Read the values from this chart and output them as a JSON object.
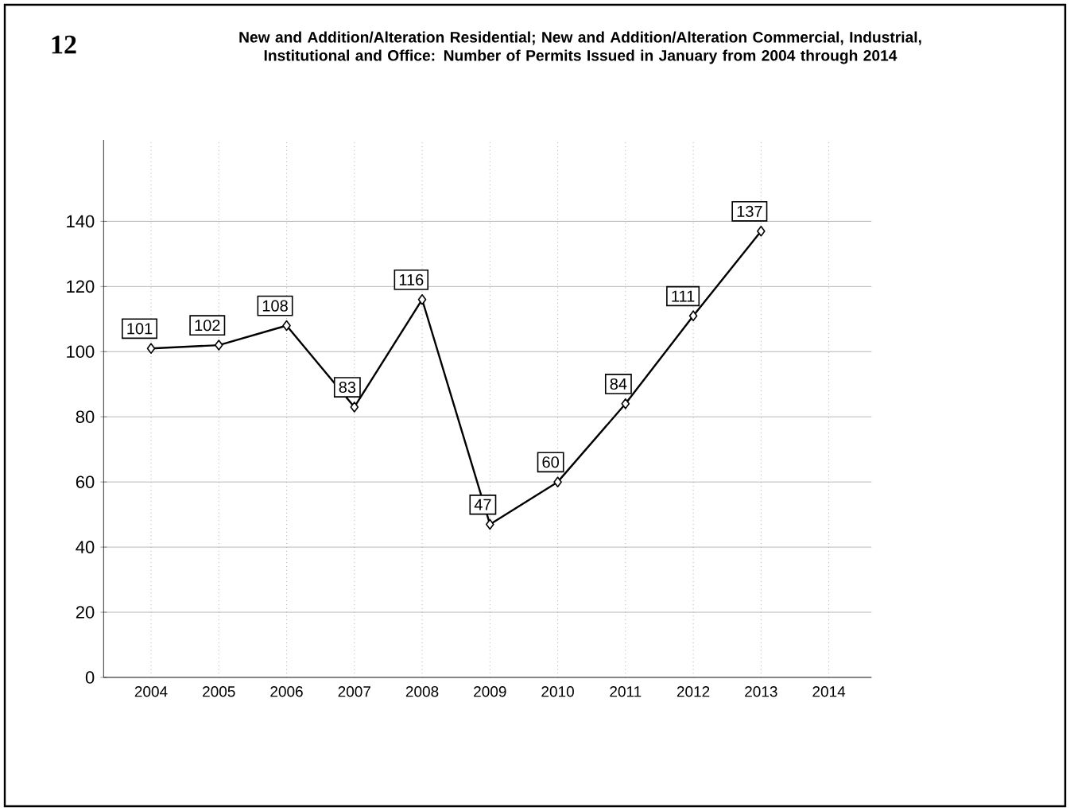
{
  "chart_data": {
    "type": "line",
    "title": "New and Addition/Alteration Residential; New and Addition/Alteration Commercial, Industrial, Institutional and Office: Number of Permits Issued in January from 2004 through 2014",
    "annotations": [
      "12"
    ],
    "categories": [
      "2004",
      "2005",
      "2006",
      "2007",
      "2008",
      "2009",
      "2010",
      "2011",
      "2012",
      "2013",
      "2014"
    ],
    "values": [
      101,
      102,
      108,
      83,
      116,
      47,
      60,
      84,
      111,
      137,
      null
    ],
    "color": "#000000",
    "marker": "diamond",
    "line_style": "solid",
    "data_labels": true,
    "grid": true,
    "ylim": [
      0,
      165
    ],
    "yticks": [
      0,
      20,
      40,
      60,
      80,
      100,
      120,
      140
    ]
  }
}
